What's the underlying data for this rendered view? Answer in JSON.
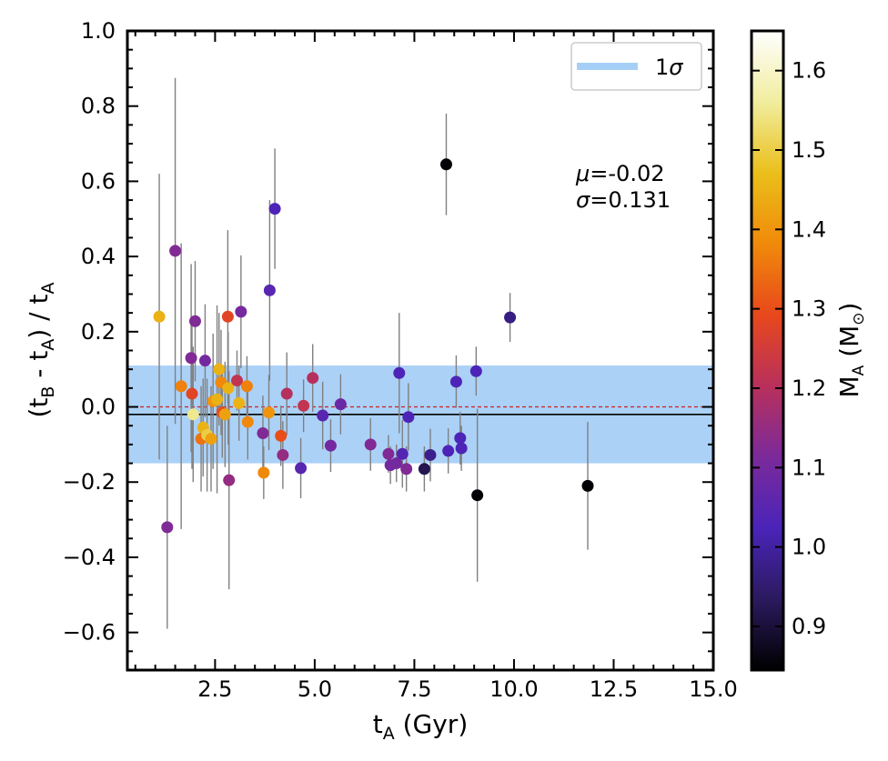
{
  "chart_data": {
    "type": "scatter",
    "title": "",
    "xlabel": {
      "main": "t",
      "sub": "A",
      "suffix": " (Gyr)"
    },
    "ylabel": {
      "p1": "(t",
      "sub1": "B",
      "p2": " - t",
      "sub2": "A",
      "p3": ") / t",
      "sub3": "A"
    },
    "xlim": [
      0.3,
      15.0
    ],
    "ylim": [
      -0.7,
      1.0
    ],
    "xticks": [
      2.5,
      5.0,
      7.5,
      10.0,
      12.5,
      15.0
    ],
    "xtick_labels": [
      "2.5",
      "5.0",
      "7.5",
      "10.0",
      "12.5",
      "15.0"
    ],
    "yticks": [
      -0.6,
      -0.4,
      -0.2,
      0.0,
      0.2,
      0.4,
      0.6,
      0.8,
      1.0
    ],
    "ytick_labels": [
      "−0.6",
      "−0.4",
      "−0.2",
      "0.0",
      "0.2",
      "0.4",
      "0.6",
      "0.8",
      "1.0"
    ],
    "band": {
      "label": "1",
      "label_symbol": "σ",
      "lower": -0.15,
      "upper": 0.11,
      "color": "#a6cff7"
    },
    "mean_line": {
      "value": -0.02,
      "color": "#000000"
    },
    "zero_line": {
      "value": 0.0,
      "color": "#cc2222"
    },
    "stats": {
      "mu_symbol": "μ",
      "mu_value": "=-0.02",
      "sigma_symbol": "σ",
      "sigma_value": "=0.131"
    },
    "colorbar": {
      "label_main": "M",
      "label_sub": "A",
      "label_suffix": " (M",
      "label_sun": "⊙",
      "label_close": ")",
      "min": 0.845,
      "max": 1.65,
      "ticks": [
        0.9,
        1.0,
        1.1,
        1.2,
        1.3,
        1.4,
        1.5,
        1.6
      ],
      "tick_labels": [
        "0.9",
        "1.0",
        "1.1",
        "1.2",
        "1.3",
        "1.4",
        "1.5",
        "1.6"
      ],
      "colormap": [
        "#000000",
        "#2b1a5e",
        "#4a24b9",
        "#7b2a9a",
        "#b8305c",
        "#e8481c",
        "#f08a0a",
        "#eabf1a",
        "#f1ed9e",
        "#ffffff"
      ]
    },
    "points": [
      {
        "x": 1.1,
        "y": 0.24,
        "err": 0.38,
        "m": 1.45
      },
      {
        "x": 1.3,
        "y": -0.32,
        "err": 0.27,
        "m": 1.12
      },
      {
        "x": 1.5,
        "y": 0.415,
        "err": 0.46,
        "m": 1.12
      },
      {
        "x": 1.65,
        "y": 0.055,
        "err": 0.38,
        "m": 1.37
      },
      {
        "x": 1.9,
        "y": 0.13,
        "err": 0.25,
        "m": 1.12
      },
      {
        "x": 1.92,
        "y": 0.035,
        "err": 0.2,
        "m": 1.28
      },
      {
        "x": 1.95,
        "y": -0.02,
        "err": 0.18,
        "m": 1.55
      },
      {
        "x": 2.0,
        "y": 0.228,
        "err": 0.16,
        "m": 1.12
      },
      {
        "x": 2.15,
        "y": -0.085,
        "err": 0.14,
        "m": 1.35
      },
      {
        "x": 2.2,
        "y": -0.055,
        "err": 0.13,
        "m": 1.45
      },
      {
        "x": 2.25,
        "y": 0.123,
        "err": 0.15,
        "m": 1.1
      },
      {
        "x": 2.3,
        "y": -0.075,
        "err": 0.15,
        "m": 1.5
      },
      {
        "x": 2.4,
        "y": -0.085,
        "err": 0.14,
        "m": 1.42
      },
      {
        "x": 2.45,
        "y": 0.015,
        "err": 0.18,
        "m": 1.4
      },
      {
        "x": 2.55,
        "y": 0.02,
        "err": 0.25,
        "m": 1.45
      },
      {
        "x": 2.6,
        "y": 0.1,
        "err": 0.15,
        "m": 1.45
      },
      {
        "x": 2.65,
        "y": 0.065,
        "err": 0.14,
        "m": 1.38
      },
      {
        "x": 2.68,
        "y": -0.015,
        "err": 0.12,
        "m": 1.3
      },
      {
        "x": 2.75,
        "y": -0.02,
        "err": 0.14,
        "m": 1.42
      },
      {
        "x": 2.82,
        "y": 0.24,
        "err": 0.23,
        "m": 1.28
      },
      {
        "x": 2.83,
        "y": 0.05,
        "err": 0.15,
        "m": 1.45
      },
      {
        "x": 2.85,
        "y": -0.195,
        "err": 0.29,
        "m": 1.15
      },
      {
        "x": 3.05,
        "y": 0.07,
        "err": 0.08,
        "m": 1.22
      },
      {
        "x": 3.1,
        "y": 0.01,
        "err": 0.1,
        "m": 1.45
      },
      {
        "x": 3.15,
        "y": 0.253,
        "err": 0.15,
        "m": 1.1
      },
      {
        "x": 3.3,
        "y": 0.055,
        "err": 0.08,
        "m": 1.37
      },
      {
        "x": 3.32,
        "y": -0.04,
        "err": 0.1,
        "m": 1.38
      },
      {
        "x": 3.7,
        "y": -0.07,
        "err": 0.1,
        "m": 1.12
      },
      {
        "x": 3.72,
        "y": -0.175,
        "err": 0.07,
        "m": 1.38
      },
      {
        "x": 3.85,
        "y": -0.015,
        "err": 0.1,
        "m": 1.4
      },
      {
        "x": 3.87,
        "y": 0.31,
        "err": 0.24,
        "m": 1.05
      },
      {
        "x": 4.0,
        "y": 0.527,
        "err": 0.16,
        "m": 1.03
      },
      {
        "x": 4.15,
        "y": -0.077,
        "err": 0.08,
        "m": 1.3
      },
      {
        "x": 4.2,
        "y": -0.128,
        "err": 0.09,
        "m": 1.15
      },
      {
        "x": 4.3,
        "y": 0.035,
        "err": 0.11,
        "m": 1.2
      },
      {
        "x": 4.65,
        "y": -0.163,
        "err": 0.08,
        "m": 1.05
      },
      {
        "x": 4.72,
        "y": 0.003,
        "err": 0.07,
        "m": 1.22
      },
      {
        "x": 4.95,
        "y": 0.077,
        "err": 0.09,
        "m": 1.2
      },
      {
        "x": 5.2,
        "y": -0.023,
        "err": 0.09,
        "m": 1.05
      },
      {
        "x": 5.4,
        "y": -0.103,
        "err": 0.07,
        "m": 1.1
      },
      {
        "x": 5.65,
        "y": 0.007,
        "err": 0.08,
        "m": 1.08
      },
      {
        "x": 6.4,
        "y": -0.1,
        "err": 0.07,
        "m": 1.12
      },
      {
        "x": 6.85,
        "y": -0.125,
        "err": 0.05,
        "m": 1.12
      },
      {
        "x": 6.9,
        "y": -0.155,
        "err": 0.05,
        "m": 1.1
      },
      {
        "x": 7.05,
        "y": -0.15,
        "err": 0.05,
        "m": 1.1
      },
      {
        "x": 7.12,
        "y": 0.09,
        "err": 0.16,
        "m": 1.03
      },
      {
        "x": 7.2,
        "y": -0.125,
        "err": 0.09,
        "m": 1.04
      },
      {
        "x": 7.3,
        "y": -0.165,
        "err": 0.06,
        "m": 1.12
      },
      {
        "x": 7.35,
        "y": -0.027,
        "err": 0.09,
        "m": 1.03
      },
      {
        "x": 7.75,
        "y": -0.165,
        "err": 0.06,
        "m": 0.92
      },
      {
        "x": 7.9,
        "y": -0.128,
        "err": 0.07,
        "m": 0.98
      },
      {
        "x": 8.3,
        "y": 0.645,
        "err": 0.135,
        "m": 0.85
      },
      {
        "x": 8.35,
        "y": -0.117,
        "err": 0.06,
        "m": 1.03
      },
      {
        "x": 8.55,
        "y": 0.067,
        "err": 0.07,
        "m": 1.03
      },
      {
        "x": 8.65,
        "y": -0.083,
        "err": 0.07,
        "m": 1.03
      },
      {
        "x": 8.68,
        "y": -0.11,
        "err": 0.06,
        "m": 1.03
      },
      {
        "x": 9.05,
        "y": 0.095,
        "err": 0.065,
        "m": 1.03
      },
      {
        "x": 9.08,
        "y": -0.235,
        "err": 0.23,
        "m": 0.85
      },
      {
        "x": 9.9,
        "y": 0.238,
        "err": 0.065,
        "m": 0.97
      },
      {
        "x": 11.85,
        "y": -0.21,
        "err": 0.17,
        "m": 0.85
      }
    ]
  }
}
